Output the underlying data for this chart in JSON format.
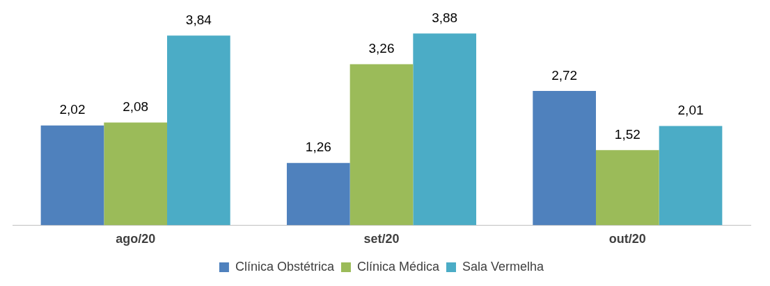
{
  "chart_data": {
    "type": "bar",
    "categories": [
      "ago/20",
      "set/20",
      "out/20"
    ],
    "series": [
      {
        "name": "Clínica Obstétrica",
        "color": "#4f81bd",
        "values": [
          2.02,
          1.26,
          2.72
        ],
        "value_labels": [
          "2,02",
          "1,26",
          "2,72"
        ]
      },
      {
        "name": "Clínica Médica",
        "color": "#9bbb59",
        "values": [
          2.08,
          3.26,
          1.52
        ],
        "value_labels": [
          "2,08",
          "3,26",
          "1,52"
        ]
      },
      {
        "name": "Sala Vermelha",
        "color": "#4bacc6",
        "values": [
          3.84,
          3.88,
          2.01
        ],
        "value_labels": [
          "3,84",
          "3,88",
          "2,01"
        ]
      }
    ],
    "legend": "bottom",
    "grid": false,
    "tick_labels": "x"
  }
}
